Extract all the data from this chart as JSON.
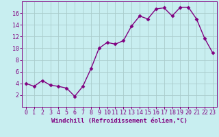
{
  "x": [
    0,
    1,
    2,
    3,
    4,
    5,
    6,
    7,
    8,
    9,
    10,
    11,
    12,
    13,
    14,
    15,
    16,
    17,
    18,
    19,
    20,
    21,
    22,
    23
  ],
  "y": [
    4.0,
    3.5,
    4.5,
    3.7,
    3.5,
    3.2,
    1.8,
    3.5,
    6.5,
    10.0,
    11.0,
    10.7,
    11.3,
    13.8,
    15.5,
    15.0,
    16.7,
    16.9,
    15.5,
    17.0,
    17.0,
    15.0,
    11.7,
    9.2
  ],
  "line_color": "#800080",
  "marker": "D",
  "marker_size": 2.5,
  "bg_color": "#C8EEF0",
  "grid_color": "#AACCCC",
  "xlabel": "Windchill (Refroidissement éolien,°C)",
  "xlabel_color": "#800080",
  "tick_color": "#800080",
  "spine_color": "#800080",
  "ylim": [
    0,
    18
  ],
  "xlim": [
    -0.5,
    23.5
  ],
  "yticks": [
    2,
    4,
    6,
    8,
    10,
    12,
    14,
    16
  ],
  "xticks": [
    0,
    1,
    2,
    3,
    4,
    5,
    6,
    7,
    8,
    9,
    10,
    11,
    12,
    13,
    14,
    15,
    16,
    17,
    18,
    19,
    20,
    21,
    22,
    23
  ],
  "tick_fontsize": 6.0,
  "xlabel_fontsize": 6.5,
  "linewidth": 1.0
}
